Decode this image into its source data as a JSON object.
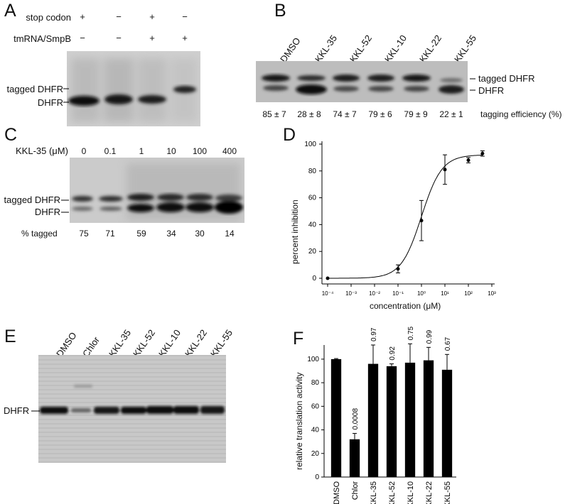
{
  "panels": {
    "A": {
      "letter": "A",
      "rows": [
        {
          "label": "stop codon",
          "values": [
            "+",
            "−",
            "+",
            "−"
          ]
        },
        {
          "label": "tmRNA/SmpB",
          "values": [
            "−",
            "−",
            "+",
            "+"
          ]
        }
      ],
      "bands": [
        "tagged DHFR",
        "DHFR"
      ]
    },
    "B": {
      "letter": "B",
      "lanes": [
        "DMSO",
        "KKL-35",
        "KKL-52",
        "KKL-10",
        "KKL-22",
        "KKL-55"
      ],
      "bands": [
        "tagged DHFR",
        "DHFR"
      ],
      "efficiencies": [
        "85 ± 7",
        "28 ± 8",
        "74 ± 7",
        "79 ± 6",
        "79 ± 9",
        "22 ± 1"
      ],
      "efficiency_label": "tagging efficiency (%)"
    },
    "C": {
      "letter": "C",
      "conc_label": "KKL-35 (μM)",
      "concentrations": [
        "0",
        "0.1",
        "1",
        "10",
        "100",
        "400"
      ],
      "bands": [
        "tagged DHFR",
        "DHFR"
      ],
      "tagged_label": "% tagged",
      "tagged": [
        "75",
        "71",
        "59",
        "34",
        "30",
        "14"
      ]
    },
    "D": {
      "letter": "D"
    },
    "E": {
      "letter": "E",
      "lanes": [
        "DMSO",
        "Chlor",
        "KKL-35",
        "KKL-52",
        "KKL-10",
        "KKL-22",
        "KKL-55"
      ],
      "band": "DHFR"
    },
    "F": {
      "letter": "F"
    }
  },
  "chart_data": [
    {
      "panel": "D",
      "type": "scatter",
      "xlabel": "concentration (μM)",
      "ylabel": "percent inhibition",
      "x_scale": "log",
      "xlim": [
        0.0001,
        1000
      ],
      "ylim": [
        0,
        100
      ],
      "x_ticks": [
        "10⁻⁴",
        "10⁻³",
        "10⁻²",
        "10⁻¹",
        "10⁰",
        "10¹",
        "10²",
        "10³"
      ],
      "y_ticks": [
        "0",
        "20",
        "40",
        "60",
        "80",
        "100"
      ],
      "points": [
        {
          "x": 0.0001,
          "y": 0,
          "err": 0
        },
        {
          "x": 0.1,
          "y": 7,
          "err": 3
        },
        {
          "x": 1,
          "y": 43,
          "err": 15
        },
        {
          "x": 10,
          "y": 81,
          "err": 11
        },
        {
          "x": 100,
          "y": 88,
          "err": 2
        },
        {
          "x": 400,
          "y": 93,
          "err": 2
        }
      ],
      "fit": {
        "bottom": 0,
        "top": 92,
        "ec50": 1.0,
        "hill": 1.0
      }
    },
    {
      "panel": "F",
      "type": "bar",
      "ylabel": "relative translation activity",
      "ylim": [
        0,
        112
      ],
      "y_ticks": [
        "0",
        "20",
        "40",
        "60",
        "80",
        "100"
      ],
      "categories": [
        "DMSO",
        "Chlor",
        "KKL-35",
        "KKL-52",
        "KKL-10",
        "KKL-22",
        "KKL-55"
      ],
      "values": [
        100,
        32,
        96,
        94,
        97,
        99,
        91
      ],
      "errors": [
        0.5,
        5,
        16,
        2,
        16,
        11,
        13
      ],
      "annotations": [
        "",
        "0.0008",
        "0.97",
        "0.92",
        "0.75",
        "0.99",
        "0.67"
      ]
    }
  ]
}
